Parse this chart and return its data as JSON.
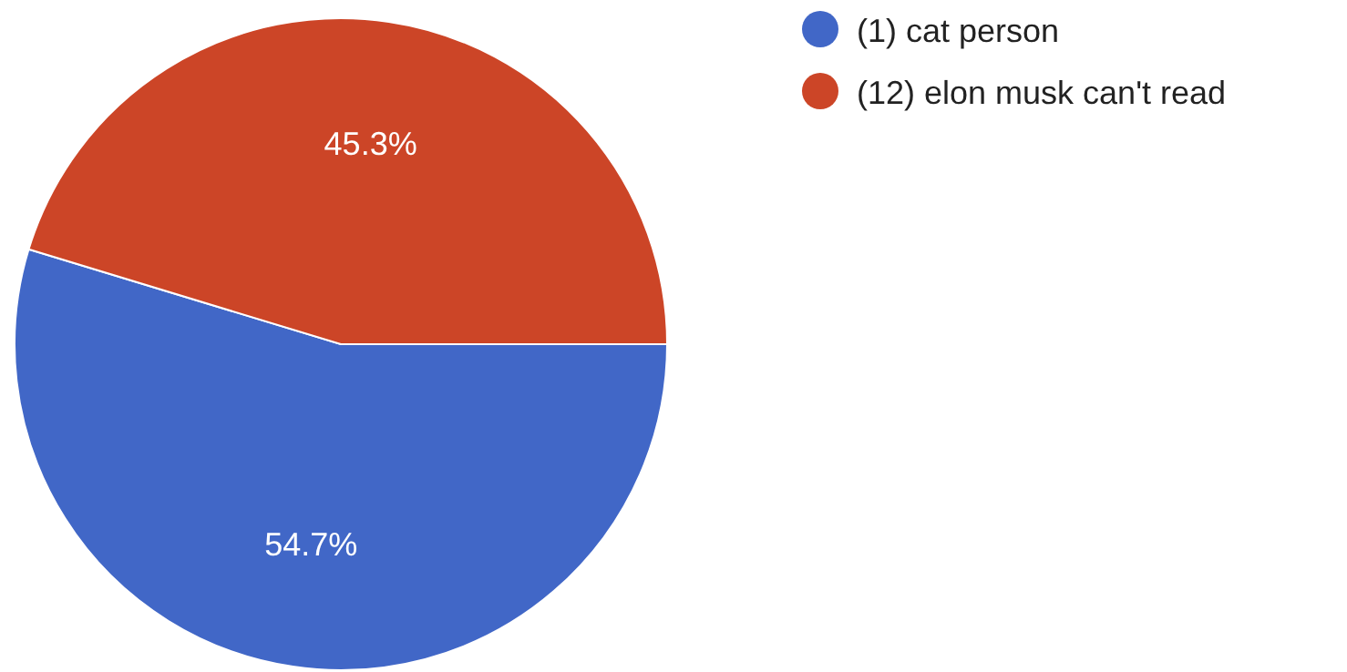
{
  "chart_data": {
    "type": "pie",
    "categories": [
      "(1) cat person",
      "(12) elon musk can't read"
    ],
    "values": [
      54.7,
      45.3
    ],
    "value_labels": [
      "54.7%",
      "45.3%"
    ],
    "colors": [
      "#4167c7",
      "#cc4527"
    ],
    "legend": "top right"
  }
}
